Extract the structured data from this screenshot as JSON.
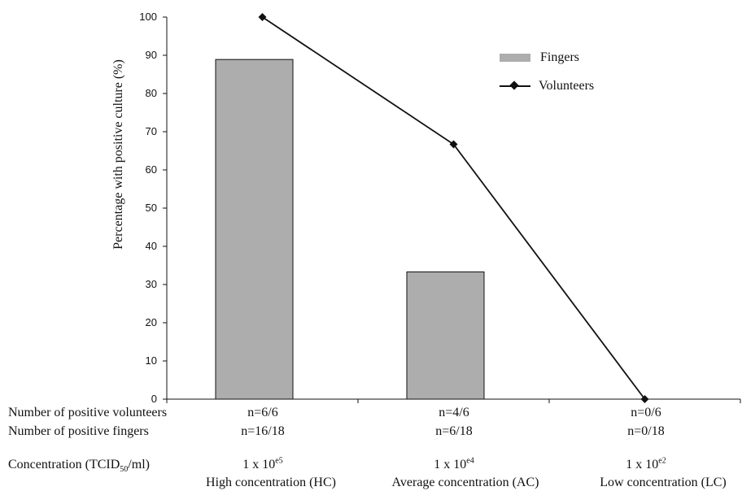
{
  "chart_data": {
    "type": "bar",
    "categories": [
      "HC",
      "AC",
      "LC"
    ],
    "series": [
      {
        "name": "Fingers",
        "kind": "bar",
        "values": [
          88.9,
          33.3,
          0
        ],
        "color": "#adadad"
      },
      {
        "name": "Volunteers",
        "kind": "line",
        "values": [
          100,
          66.7,
          0
        ],
        "color": "#111111",
        "marker": "diamond"
      }
    ],
    "ylabel": "Percentage with positive culture (%)",
    "ylim": [
      0,
      100
    ],
    "yticks": [
      0,
      10,
      20,
      30,
      40,
      50,
      60,
      70,
      80,
      90,
      100
    ],
    "grid": false,
    "legend_position": "top-right"
  },
  "table": {
    "rows": [
      {
        "label": "Number of positive volunteers",
        "cells": [
          "n=6/6",
          "n=4/6",
          "n=0/6"
        ]
      },
      {
        "label": "Number of positive fingers",
        "cells": [
          "n=16/18",
          "n=6/18",
          "n=0/18"
        ]
      }
    ],
    "concentration_label": {
      "prefix": "Concentration (TCID",
      "sub": "50",
      "suffix": "/ml)"
    },
    "concentrations": [
      {
        "base": "1 x 10",
        "exp": "e5",
        "name": "High concentration (HC)"
      },
      {
        "base": "1 x 10",
        "exp": "e4",
        "name": "Average concentration (AC)"
      },
      {
        "base": "1 x 10",
        "exp": "e2",
        "name": "Low concentration (LC)"
      }
    ]
  }
}
